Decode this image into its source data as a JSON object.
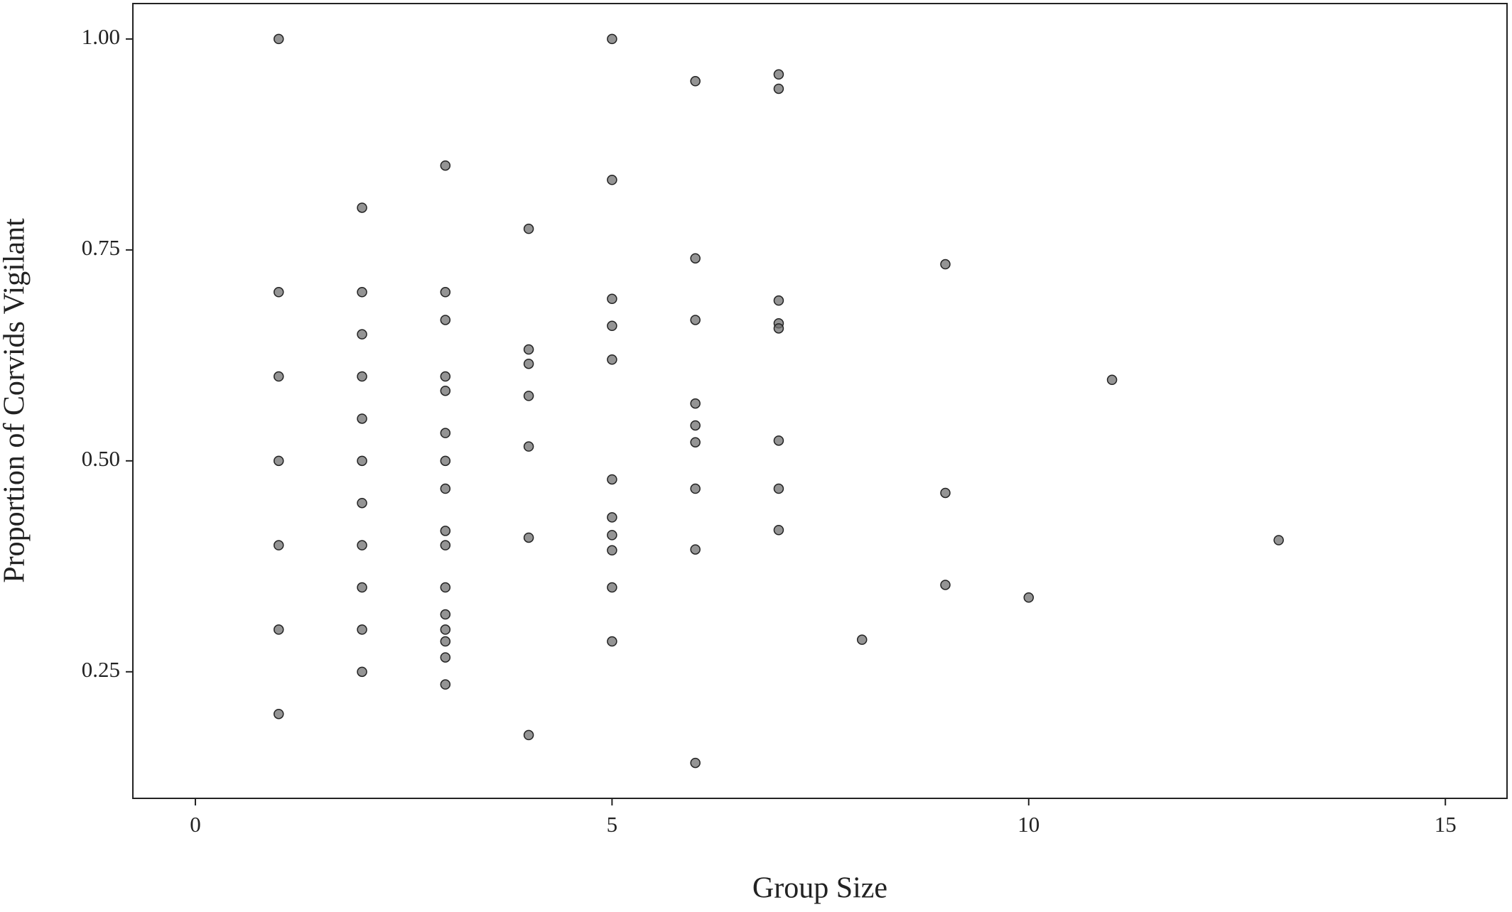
{
  "chart_data": {
    "type": "scatter",
    "x_label": "Group Size",
    "y_label": "Proportion of Corvids Vigilant",
    "x": [
      1,
      1,
      1,
      1,
      1,
      1,
      1,
      2,
      2,
      2,
      2,
      2,
      2,
      2,
      2,
      2,
      2,
      2,
      3,
      3,
      3,
      3,
      3,
      3,
      3,
      3,
      3,
      3,
      3,
      3,
      3,
      3,
      3,
      3,
      4,
      4,
      4,
      4,
      4,
      4,
      4,
      5,
      5,
      5,
      5,
      5,
      5,
      5,
      5,
      5,
      5,
      5,
      6,
      6,
      6,
      6,
      6,
      6,
      6,
      6,
      6,
      7,
      7,
      7,
      7,
      7,
      7,
      7,
      7,
      8,
      9,
      9,
      9,
      10,
      11,
      13
    ],
    "y": [
      1.0,
      0.7,
      0.6,
      0.5,
      0.4,
      0.3,
      0.2,
      0.8,
      0.7,
      0.65,
      0.6,
      0.55,
      0.5,
      0.45,
      0.4,
      0.35,
      0.3,
      0.25,
      0.85,
      0.7,
      0.667,
      0.6,
      0.583,
      0.533,
      0.5,
      0.467,
      0.417,
      0.4,
      0.35,
      0.318,
      0.3,
      0.286,
      0.267,
      0.235,
      0.775,
      0.632,
      0.615,
      0.577,
      0.517,
      0.409,
      0.175,
      1.0,
      0.833,
      0.692,
      0.66,
      0.62,
      0.478,
      0.433,
      0.412,
      0.394,
      0.35,
      0.286,
      0.95,
      0.74,
      0.667,
      0.568,
      0.542,
      0.522,
      0.467,
      0.395,
      0.142,
      0.958,
      0.941,
      0.69,
      0.663,
      0.657,
      0.524,
      0.467,
      0.418,
      0.288,
      0.733,
      0.462,
      0.353,
      0.338,
      0.596,
      0.406
    ],
    "color": "#707070",
    "xlim": [
      -0.75,
      15.74
    ],
    "ylim": [
      0.1,
      1.042
    ],
    "xticks": [
      0,
      5,
      10,
      15
    ],
    "yticks": [
      {
        "value": 0.25,
        "label": "0.25"
      },
      {
        "value": 0.5,
        "label": "0.50"
      },
      {
        "value": 0.75,
        "label": "0.75"
      },
      {
        "value": 1.0,
        "label": "1.00"
      }
    ],
    "grid": false
  }
}
